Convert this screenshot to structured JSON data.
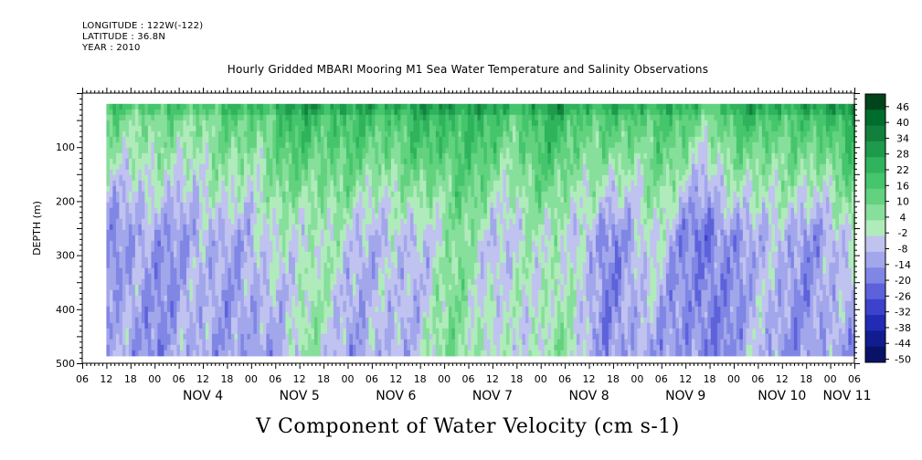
{
  "header": {
    "longitude": "LONGITUDE : 122W(-122)",
    "latitude": "LATITUDE : 36.8N",
    "year": "YEAR : 2010",
    "title": "Hourly Gridded MBARI Mooring M1 Sea Water Temperature and Salinity Observations"
  },
  "chart_data": {
    "type": "heatmap",
    "title": "Hourly Gridded MBARI Mooring M1 Sea Water Temperature and Salinity Observations",
    "variable_label": "V Component of Water Velocity (cm s-1)",
    "ylabel": "DEPTH (m)",
    "ylim": [
      500,
      0
    ],
    "y_ticks": [
      100,
      200,
      300,
      400,
      500
    ],
    "x_start": "NOV 3 06:00",
    "x_end": "NOV 11 06:00",
    "x_hour_labels": [
      "06",
      "12",
      "18",
      "00",
      "06",
      "12",
      "18",
      "00",
      "06",
      "12",
      "18",
      "00",
      "06",
      "12",
      "18",
      "00",
      "06",
      "12",
      "18",
      "00",
      "06",
      "12",
      "18",
      "00",
      "06",
      "12",
      "18",
      "00",
      "06",
      "12",
      "18",
      "00",
      "06"
    ],
    "x_day_labels": [
      "NOV 4",
      "NOV 5",
      "NOV 6",
      "NOV 7",
      "NOV 8",
      "NOV 9",
      "NOV 10",
      "NOV 11"
    ],
    "colorbar_levels": [
      46,
      40,
      34,
      28,
      22,
      16,
      10,
      4,
      -2,
      -8,
      -14,
      -20,
      -26,
      -32,
      -38,
      -44,
      -50
    ],
    "colorbar_colors": [
      "#00441b",
      "#006d2c",
      "#12803c",
      "#1e9a4c",
      "#2fb35c",
      "#45c56c",
      "#62d27f",
      "#86df9a",
      "#b0ebbb",
      "#c0c2ef",
      "#a2a6eb",
      "#8086e4",
      "#5d62da",
      "#3d42cc",
      "#222bb4",
      "#111c90",
      "#0a1268"
    ],
    "data_extent": {
      "x_start": "NOV 3 12:00",
      "x_end": "NOV 11 06:00",
      "depth_min": 10,
      "depth_max": 485
    },
    "day_mean_by_column": [
      {
        "day": "NOV 3 12",
        "surface": 12,
        "mid": -14,
        "deep": -10
      },
      {
        "day": "NOV 4 00",
        "surface": 8,
        "mid": -12,
        "deep": -14
      },
      {
        "day": "NOV 4 12",
        "surface": 10,
        "mid": -10,
        "deep": -8
      },
      {
        "day": "NOV 5 00",
        "surface": 14,
        "mid": -6,
        "deep": -16
      },
      {
        "day": "NOV 5 12",
        "surface": 22,
        "mid": 2,
        "deep": 4
      },
      {
        "day": "NOV 6 00",
        "surface": 18,
        "mid": -4,
        "deep": -12
      },
      {
        "day": "NOV 6 12",
        "surface": 20,
        "mid": -8,
        "deep": -6
      },
      {
        "day": "NOV 7 00",
        "surface": 24,
        "mid": 6,
        "deep": 8
      },
      {
        "day": "NOV 7 12",
        "surface": 16,
        "mid": -6,
        "deep": -4
      },
      {
        "day": "NOV 8 00",
        "surface": 22,
        "mid": 4,
        "deep": 6
      },
      {
        "day": "NOV 8 12",
        "surface": 14,
        "mid": -16,
        "deep": -14
      },
      {
        "day": "NOV 9 00",
        "surface": 18,
        "mid": -2,
        "deep": -10
      },
      {
        "day": "NOV 9 12",
        "surface": 10,
        "mid": -22,
        "deep": -18
      },
      {
        "day": "NOV 10 00",
        "surface": 20,
        "mid": -6,
        "deep": -8
      },
      {
        "day": "NOV 10 12",
        "surface": 16,
        "mid": -12,
        "deep": -14
      },
      {
        "day": "NOV 11 00",
        "surface": 30,
        "mid": -4,
        "deep": -10
      }
    ]
  }
}
